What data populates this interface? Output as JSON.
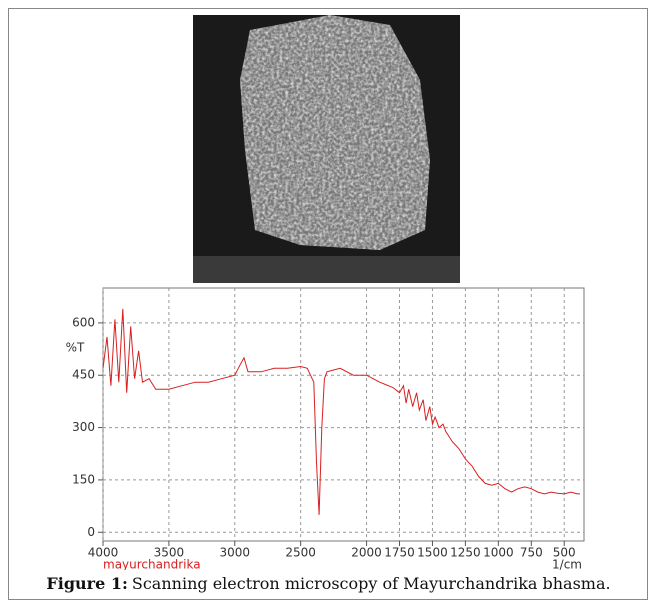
{
  "figure": {
    "caption_label": "Figure 1:",
    "caption_text": "Scanning electron microscopy of Mayurchandrika bhasma."
  },
  "chart_data": {
    "type": "line",
    "ylabel": "%T",
    "xlabel": "1/cm",
    "x": [
      4000,
      3970,
      3940,
      3910,
      3880,
      3850,
      3820,
      3790,
      3760,
      3730,
      3700,
      3650,
      3600,
      3500,
      3400,
      3300,
      3200,
      3100,
      3000,
      2960,
      2930,
      2900,
      2800,
      2700,
      2600,
      2500,
      2450,
      2400,
      2380,
      2360,
      2340,
      2320,
      2300,
      2250,
      2200,
      2100,
      2000,
      1900,
      1800,
      1750,
      1720,
      1700,
      1680,
      1650,
      1620,
      1600,
      1570,
      1550,
      1520,
      1500,
      1480,
      1450,
      1420,
      1400,
      1350,
      1300,
      1250,
      1200,
      1150,
      1100,
      1050,
      1000,
      950,
      900,
      850,
      800,
      750,
      700,
      650,
      600,
      550,
      500,
      450,
      400,
      380
    ],
    "series": [
      {
        "name": "mayurchandrika",
        "color": "#d62020",
        "values": [
          470,
          560,
          420,
          610,
          430,
          640,
          400,
          590,
          440,
          520,
          430,
          440,
          410,
          410,
          420,
          430,
          430,
          440,
          450,
          480,
          500,
          460,
          460,
          470,
          470,
          475,
          470,
          430,
          200,
          50,
          300,
          440,
          460,
          465,
          470,
          450,
          450,
          430,
          415,
          400,
          420,
          370,
          410,
          360,
          400,
          350,
          380,
          320,
          360,
          310,
          330,
          300,
          310,
          290,
          260,
          240,
          210,
          190,
          160,
          140,
          135,
          140,
          125,
          115,
          125,
          130,
          125,
          115,
          110,
          115,
          112,
          110,
          115,
          110,
          110
        ]
      }
    ],
    "xlim": [
      4000,
      350
    ],
    "ylim": [
      -25,
      700
    ],
    "xticks": [
      4000,
      3500,
      3000,
      2500,
      2000,
      1750,
      1500,
      1250,
      1000,
      750,
      500
    ],
    "yticks": [
      0,
      150,
      300,
      450,
      600
    ],
    "grid": true
  }
}
